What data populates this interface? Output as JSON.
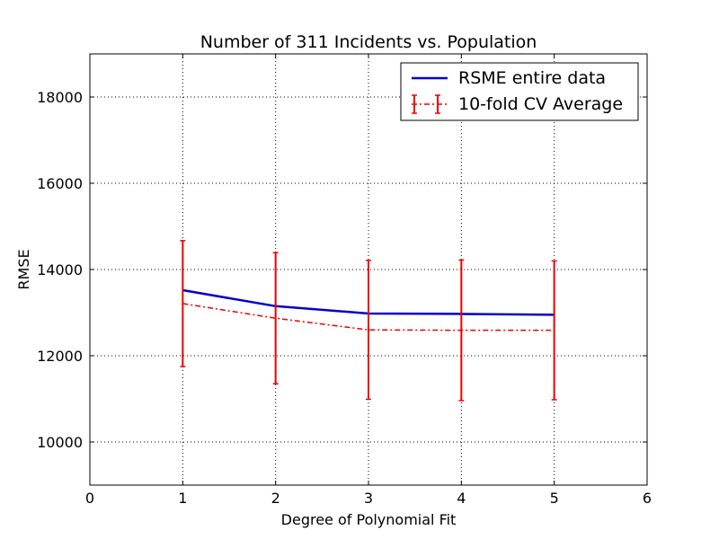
{
  "chart_data": {
    "type": "line",
    "title": "Number of 311 Incidents vs. Population",
    "xlabel": "Degree of Polynomial Fit",
    "ylabel": "RMSE",
    "xlim": [
      0,
      6
    ],
    "ylim": [
      9000,
      19000
    ],
    "xticks": [
      0,
      1,
      2,
      3,
      4,
      5,
      6
    ],
    "yticks": [
      10000,
      12000,
      14000,
      16000,
      18000
    ],
    "xtick_labels": [
      "0",
      "1",
      "2",
      "3",
      "4",
      "5",
      "6"
    ],
    "ytick_labels": [
      "10000",
      "12000",
      "14000",
      "16000",
      "18000"
    ],
    "grid": true,
    "legend_position": "top-right",
    "series": [
      {
        "name": "RSME entire data",
        "style": "solid",
        "color": "#0000cc",
        "x": [
          1,
          2,
          3,
          4,
          5
        ],
        "y": [
          13520,
          13150,
          12980,
          12970,
          12950
        ]
      },
      {
        "name": "10-fold CV Average",
        "style": "dash-dot",
        "color": "#ee0000",
        "x": [
          1,
          2,
          3,
          4,
          5
        ],
        "y": [
          13210,
          12870,
          12600,
          12590,
          12590
        ],
        "error": [
          1460,
          1520,
          1610,
          1630,
          1610
        ]
      }
    ]
  }
}
